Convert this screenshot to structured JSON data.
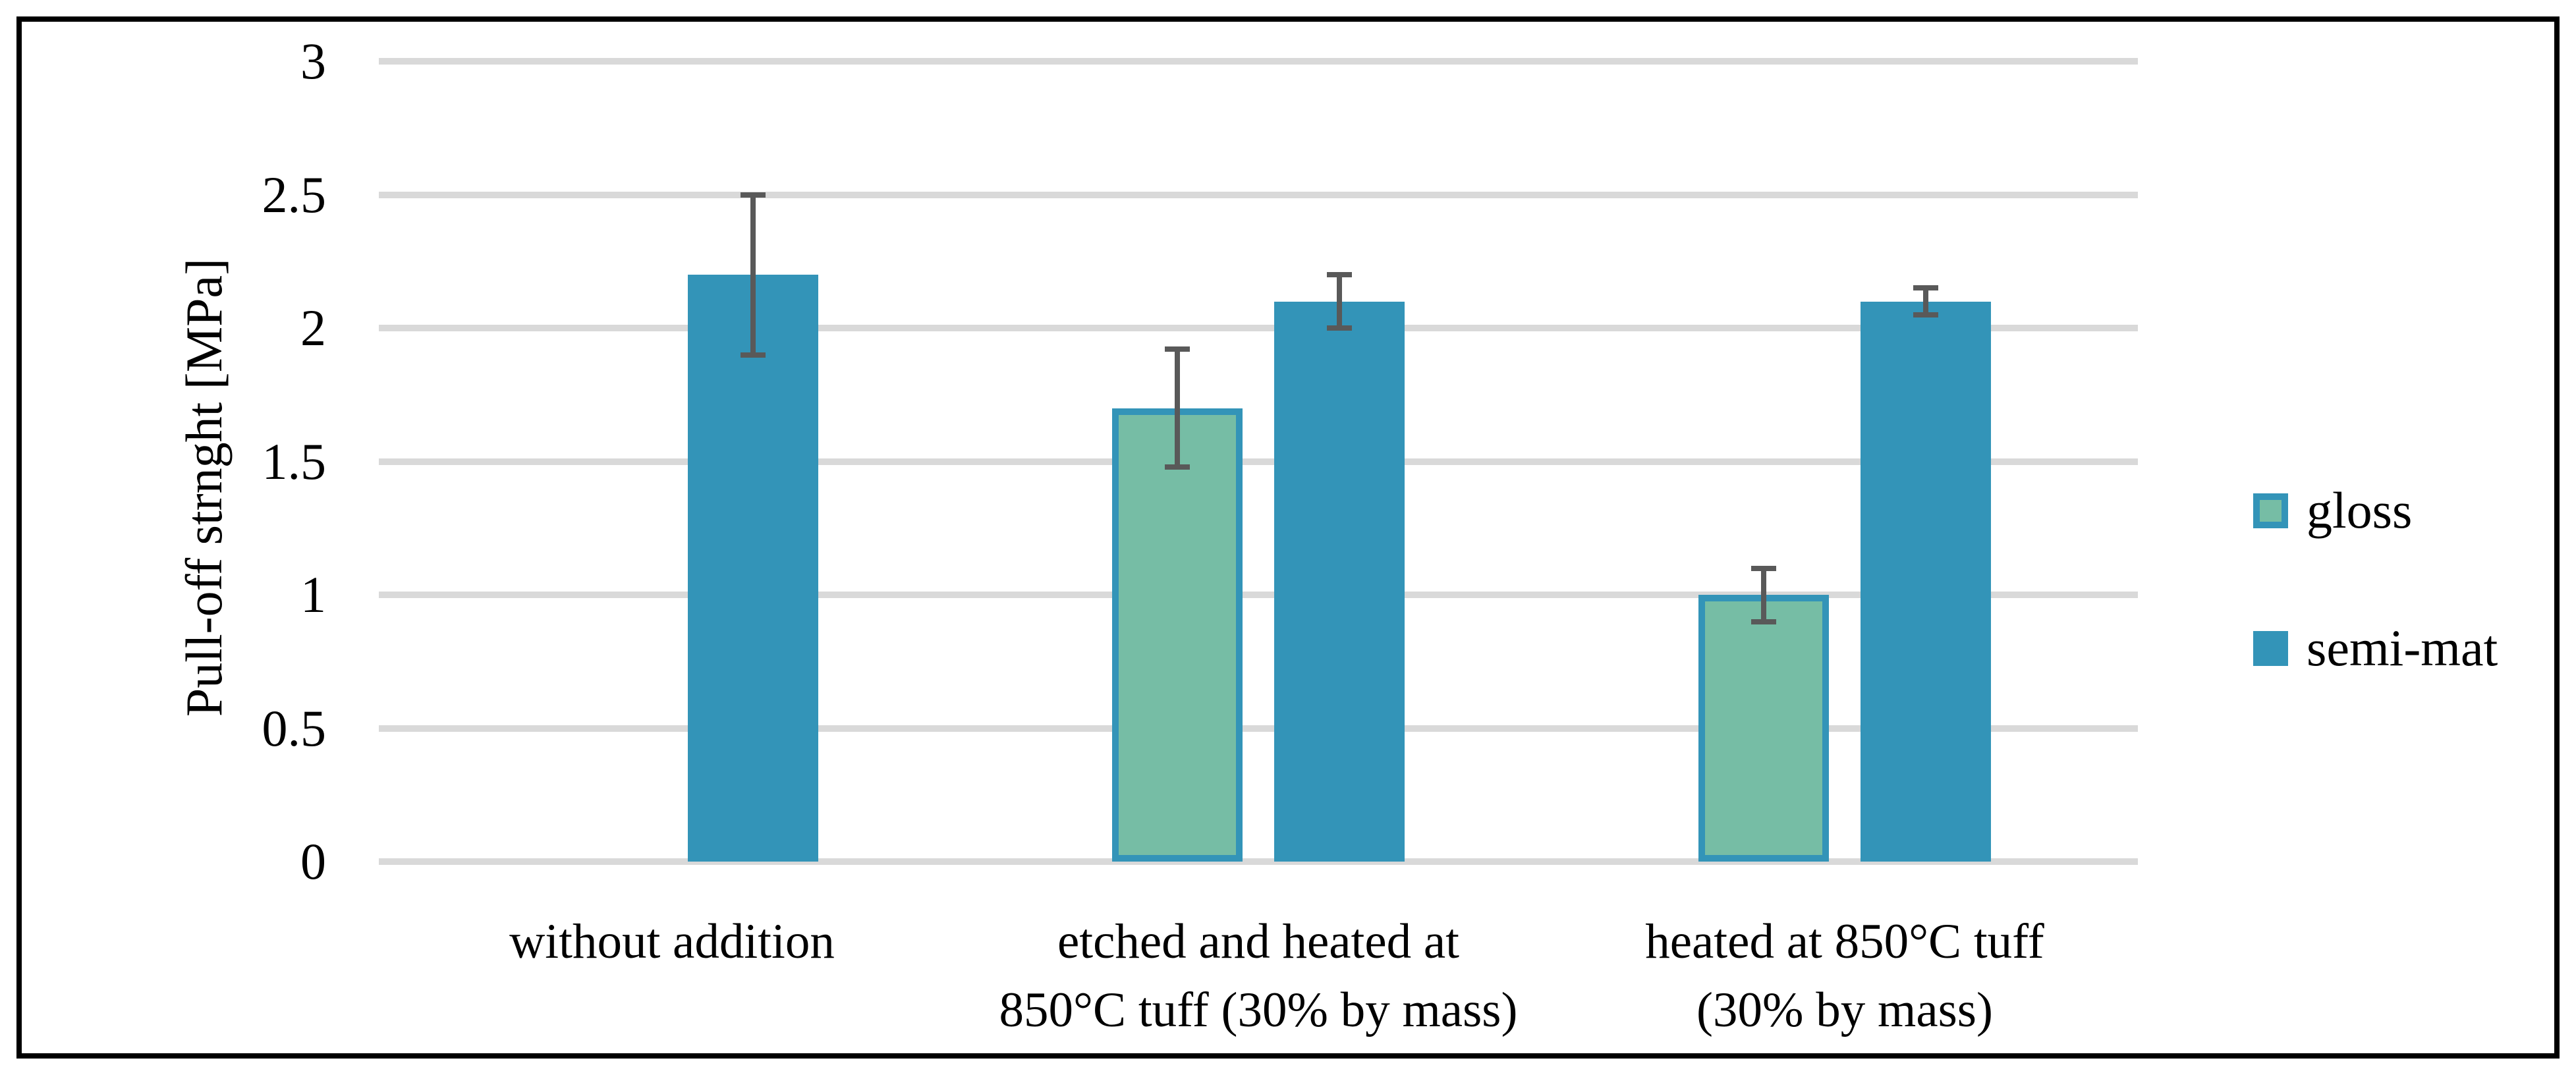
{
  "figure": {
    "background": "#FFFFFF",
    "frame_color": "#000000",
    "gridline_color": "#D9D9D9",
    "error_bar_color": "#595959",
    "text_color": "#000000"
  },
  "chart_data": {
    "type": "bar",
    "title": "",
    "xlabel": "",
    "ylabel": "Pull-off strnght [MPa]",
    "ylim": [
      0,
      3
    ],
    "grid": true,
    "legend_position": "right",
    "yticks": [
      {
        "value": 3,
        "label": "3"
      },
      {
        "value": 2.5,
        "label": "2.5"
      },
      {
        "value": 2,
        "label": "2"
      },
      {
        "value": 1.5,
        "label": "1.5"
      },
      {
        "value": 1,
        "label": "1"
      },
      {
        "value": 0.5,
        "label": "0.5"
      },
      {
        "value": 0,
        "label": "0"
      }
    ],
    "categories": [
      {
        "label": "without addition",
        "lines": [
          "without addition"
        ]
      },
      {
        "label": "etched and heated at 850°C tuff (30% by mass)",
        "lines": [
          "etched and heated at",
          "850°C tuff (30% by mass)"
        ]
      },
      {
        "label": "heated at 850°C tuff (30% by mass)",
        "lines": [
          "heated at 850°C tuff",
          "(30% by mass)"
        ]
      }
    ],
    "series": [
      {
        "name": "gloss",
        "fill": "#76BDA5",
        "border": "#3394B8",
        "values": [
          null,
          1.7,
          1.0
        ],
        "errors": [
          null,
          0.22,
          0.1
        ]
      },
      {
        "name": "semi-mat",
        "fill": "#3394B8",
        "border": null,
        "values": [
          2.2,
          2.1,
          2.1
        ],
        "errors": [
          0.3,
          0.1,
          0.05
        ]
      }
    ]
  },
  "legend": {
    "items": [
      {
        "label": "gloss"
      },
      {
        "label": "semi-mat"
      }
    ]
  }
}
